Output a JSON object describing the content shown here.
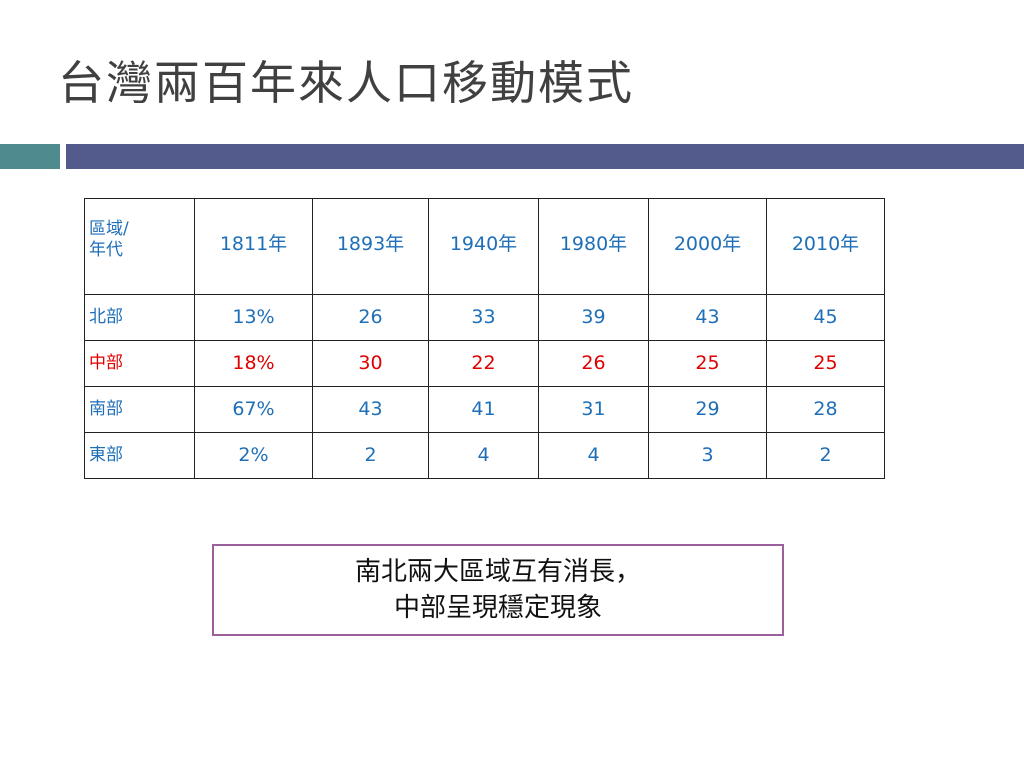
{
  "slide": {
    "title": "台灣兩百年來人口移動模式"
  },
  "table": {
    "header_label_line1": "區域/",
    "header_label_line2": "年代",
    "years": [
      "1811年",
      "1893年",
      "1940年",
      "1980年",
      "2000年",
      "2010年"
    ],
    "rows": [
      {
        "region": "北部",
        "values": [
          "13%",
          "26",
          "33",
          "39",
          "43",
          "45"
        ],
        "color": "#1f6fb8"
      },
      {
        "region": "中部",
        "values": [
          "18%",
          "30",
          "22",
          "26",
          "25",
          "25"
        ],
        "color": "#e00000"
      },
      {
        "region": "南部",
        "values": [
          "67%",
          "43",
          "41",
          "31",
          "29",
          "28"
        ],
        "color": "#1f6fb8"
      },
      {
        "region": "東部",
        "values": [
          "2%",
          "2",
          "4",
          "4",
          "3",
          "2"
        ],
        "color": "#1f6fb8"
      }
    ]
  },
  "callout": {
    "line1": "南北兩大區域互有消長，",
    "line2": "中部呈現穩定現象"
  },
  "colors": {
    "accent_teal": "#4f8a8e",
    "accent_indigo": "#535a8c",
    "callout_border": "#9b5f9b"
  }
}
